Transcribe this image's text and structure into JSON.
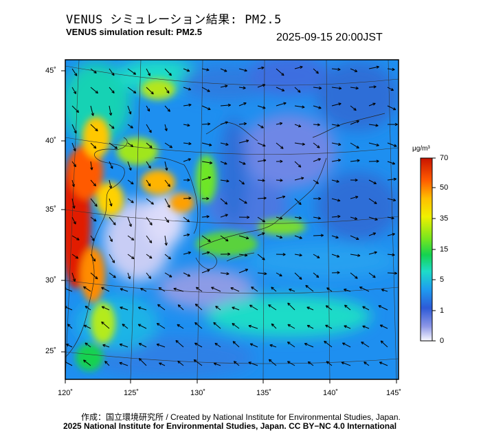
{
  "header": {
    "title_jp": "VENUS シミュレーション結果: PM2.5",
    "title_en": "VENUS simulation result: PM2.5",
    "datetime": "2025-09-15 20:00JST"
  },
  "map": {
    "lon_ticks": [
      "120˚",
      "125˚",
      "130˚",
      "135˚",
      "140˚",
      "145˚"
    ],
    "lat_ticks": [
      "45˚",
      "40˚",
      "35˚",
      "30˚",
      "25˚"
    ]
  },
  "colorbar": {
    "unit": "μg/m³",
    "labels": [
      "70",
      "50",
      "35",
      "15",
      "5",
      "1",
      "0"
    ],
    "colors": [
      "#d21e00",
      "#ff7800",
      "#ffd200",
      "#78e61e",
      "#14d23c",
      "#1edcc8",
      "#1e9bf0",
      "#2d5ad7",
      "#8c96e6",
      "#f5f5ff"
    ]
  },
  "footer": {
    "credit_jp_en": "作成：国立環境研究所 / Created by National Institute for Environmental Studies, Japan.",
    "copyright": "2025 National Institute for Environmental Studies, Japan. CC BY−NC 4.0 International"
  }
}
